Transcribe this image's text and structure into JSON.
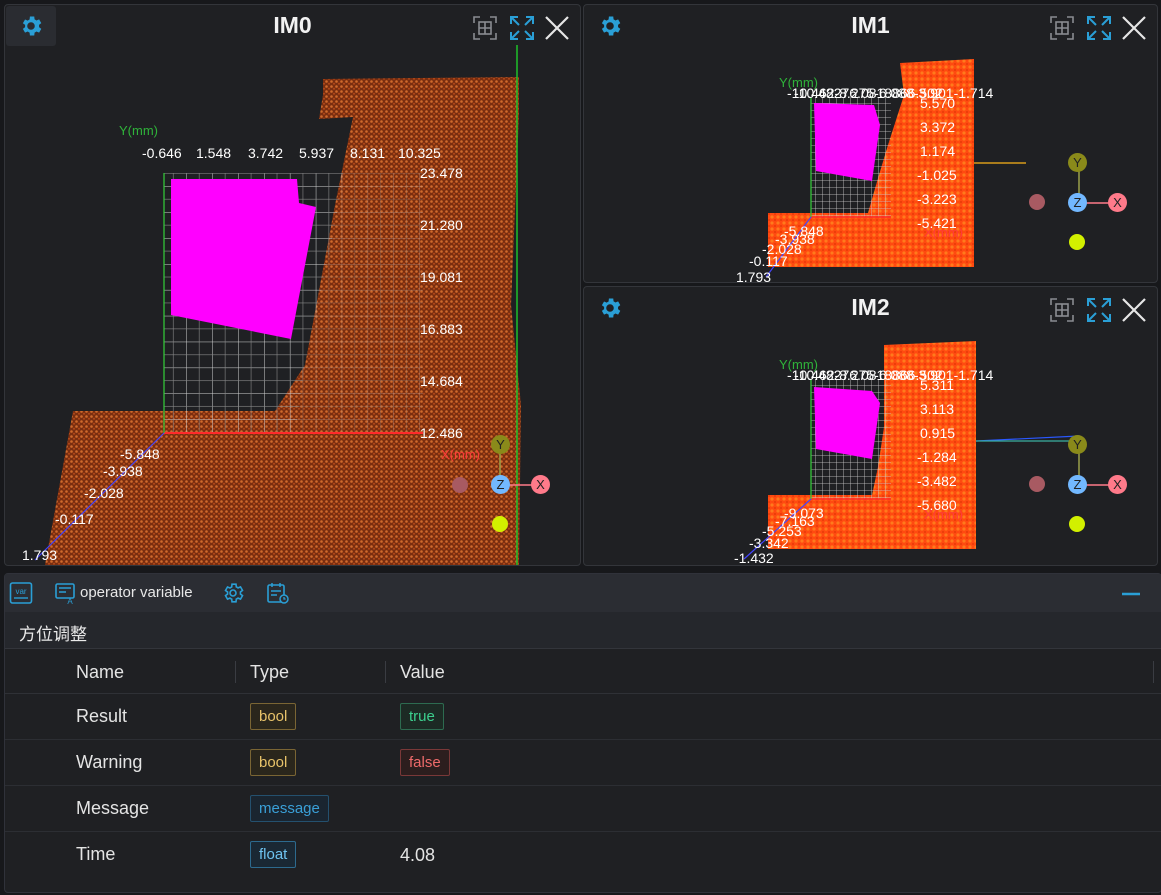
{
  "viewers": [
    {
      "title": "IM0",
      "y_axis_name": "Y(mm)",
      "x_axis_name": "X(mm)",
      "top_ticks": [
        "-0.646",
        "1.548",
        "3.742",
        "5.937",
        "8.131",
        "10.325"
      ],
      "right_ticks": [
        "23.478",
        "21.280",
        "19.081",
        "16.883",
        "14.684",
        "12.486"
      ],
      "diag_ticks": [
        "-5.848",
        "-3.938",
        "-2.028",
        "-0.117",
        "1.793"
      ]
    },
    {
      "title": "IM1",
      "y_axis_name": "Y(mm)",
      "x_axis_name": "X(mm)",
      "top_label": "-10.462-8.275-6.088-3.901-1.714",
      "top_label_2": "-10.48276.0818866.502",
      "right_ticks": [
        "5.570",
        "3.372",
        "1.174",
        "-1.025",
        "-3.223",
        "-5.421"
      ],
      "diag_ticks": [
        "-5.848",
        "-3.938",
        "-2.028",
        "-0.117",
        "1.793"
      ]
    },
    {
      "title": "IM2",
      "y_axis_name": "Y(mm)",
      "x_axis_name": "X(mm)",
      "top_label": "-10.462-8.275-6.088-3.901-1.714",
      "top_label_2": "-10.48276.0818866.502",
      "right_ticks": [
        "5.311",
        "3.113",
        "0.915",
        "-1.284",
        "-3.482",
        "-5.680"
      ],
      "diag_ticks": [
        "-9.073",
        "-7.163",
        "-5.253",
        "-3.342",
        "-1.432"
      ]
    }
  ],
  "gizmo": {
    "y": "Y",
    "z": "Z",
    "x": "X"
  },
  "icons": {
    "settings": "gear-icon",
    "fit": "fit-view-icon",
    "expand": "expand-icon",
    "close": "close-icon",
    "var": "var-icon",
    "variable": "variable-icon",
    "config": "config-gear-icon",
    "schedule": "schedule-icon",
    "minimize": "minimize-icon"
  },
  "toolbar": {
    "var_badge": "var",
    "operator_variable_label": "operator variable"
  },
  "section": {
    "title": "方位调整"
  },
  "table": {
    "headers": {
      "name": "Name",
      "type": "Type",
      "value": "Value"
    },
    "rows": [
      {
        "name": "Result",
        "type": "bool",
        "value": "true"
      },
      {
        "name": "Warning",
        "type": "bool",
        "value": "false"
      },
      {
        "name": "Message",
        "type": "message",
        "value": ""
      },
      {
        "name": "Time",
        "type": "float",
        "value": "4.08"
      }
    ]
  },
  "colors": {
    "accent": "#2a9fd6",
    "magenta": "#ff00ff",
    "point_cloud": "#b8541e",
    "point_cloud_bright": "#ff5a12",
    "type_tag": "#e8c36a",
    "message_tag": "#3aa0d8",
    "true_tag": "#3ccf8e",
    "false_tag": "#ee6a6a"
  }
}
